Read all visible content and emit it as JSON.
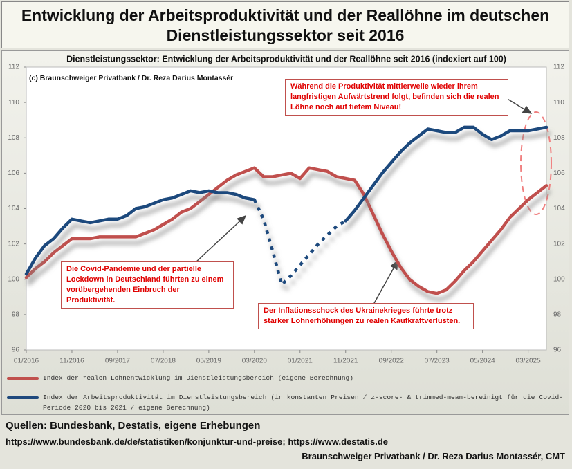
{
  "title": "Entwicklung der Arbeitsproduktivität und der Reallöhne im deutschen Dienstleistungssektor seit 2016",
  "chart_data": {
    "type": "line",
    "title": "Dienstleistungssektor: Entwicklung der Arbeitsproduktivität und der Reallöhne seit 2016 (indexiert auf 100)",
    "copyright": "(c) Braunschweiger Privatbank / Dr. Reza Darius Montassér",
    "categories": [
      "01/2016",
      null,
      null,
      null,
      null,
      "11/2016",
      null,
      null,
      null,
      null,
      "09/2017",
      null,
      null,
      null,
      null,
      "07/2018",
      null,
      null,
      null,
      null,
      "05/2019",
      null,
      null,
      null,
      null,
      "03/2020",
      null,
      null,
      null,
      null,
      "01/2021",
      null,
      null,
      null,
      null,
      "11/2021",
      null,
      null,
      null,
      null,
      "09/2022",
      null,
      null,
      null,
      null,
      "07/2023",
      null,
      null,
      null,
      null,
      "05/2024",
      null,
      null,
      null,
      null,
      "03/2025",
      null,
      null
    ],
    "series": [
      {
        "name": "Index der realen Lohnentwicklung im Dienstleistungsbereich (eigene Berechnung)",
        "color": "#c0504d",
        "values": [
          100.1,
          100.6,
          101.0,
          101.5,
          101.9,
          102.3,
          102.3,
          102.3,
          102.4,
          102.4,
          102.4,
          102.4,
          102.4,
          102.6,
          102.8,
          103.1,
          103.4,
          103.8,
          104.0,
          104.4,
          104.8,
          105.2,
          105.6,
          105.9,
          106.1,
          106.3,
          105.8,
          105.8,
          105.9,
          106.0,
          105.7,
          106.3,
          106.2,
          106.1,
          105.8,
          105.7,
          105.6,
          104.8,
          103.7,
          102.6,
          101.6,
          100.7,
          100.0,
          99.6,
          99.3,
          99.2,
          99.4,
          99.9,
          100.5,
          101.0,
          101.6,
          102.2,
          102.8,
          103.5,
          104.0,
          104.5,
          104.9,
          105.3
        ]
      },
      {
        "name": "Index der Arbeitsproduktivität im Dienstleistungsbereich (in konstanten Preisen / z-score- & trimmed-mean-bereinigt für die Covid-Periode 2020 bis 2021 / eigene Berechnung)",
        "color": "#1f497d",
        "dotted_between": [
          25,
          35
        ],
        "values": [
          100.3,
          101.2,
          101.9,
          102.3,
          102.9,
          103.4,
          103.3,
          103.2,
          103.3,
          103.4,
          103.4,
          103.6,
          104.0,
          104.1,
          104.3,
          104.5,
          104.6,
          104.8,
          105.0,
          104.9,
          105.0,
          104.9,
          104.9,
          104.8,
          104.6,
          104.5,
          103.4,
          101.6,
          99.7,
          100.2,
          100.8,
          101.4,
          102.0,
          102.5,
          103.0,
          103.3,
          103.9,
          104.6,
          105.3,
          106.0,
          106.6,
          107.2,
          107.7,
          108.1,
          108.5,
          108.4,
          108.3,
          108.3,
          108.6,
          108.6,
          108.2,
          107.9,
          108.1,
          108.4,
          108.4,
          108.4,
          108.5,
          108.6
        ]
      }
    ],
    "ylim": [
      96,
      112
    ],
    "yticks": [
      96,
      98,
      100,
      102,
      104,
      106,
      108,
      110,
      112
    ],
    "annotations": [
      "Während die Produktivität mittlerweile wieder ihrem langfristigen Aufwärtstrend folgt, befinden sich die realen Löhne noch auf tiefem Niveau!",
      "Die Covid-Pandemie und der partielle Lockdown in Deutschland führten zu einem vorübergehenden Einbruch der Produktivität.",
      "Der Inflationsschock des Ukrainekrieges führte trotz starker Lohnerhöhungen zu realen Kaufkraftverlusten."
    ]
  },
  "sources": {
    "heading": "Quellen: Bundesbank, Destatis, eigene Erhebungen",
    "urls": "https://www.bundesbank.de/de/statistiken/konjunktur-und-preise; https://www.destatis.de",
    "author": "Braunschweiger Privatbank / Dr. Reza Darius Montassér, CMT"
  }
}
